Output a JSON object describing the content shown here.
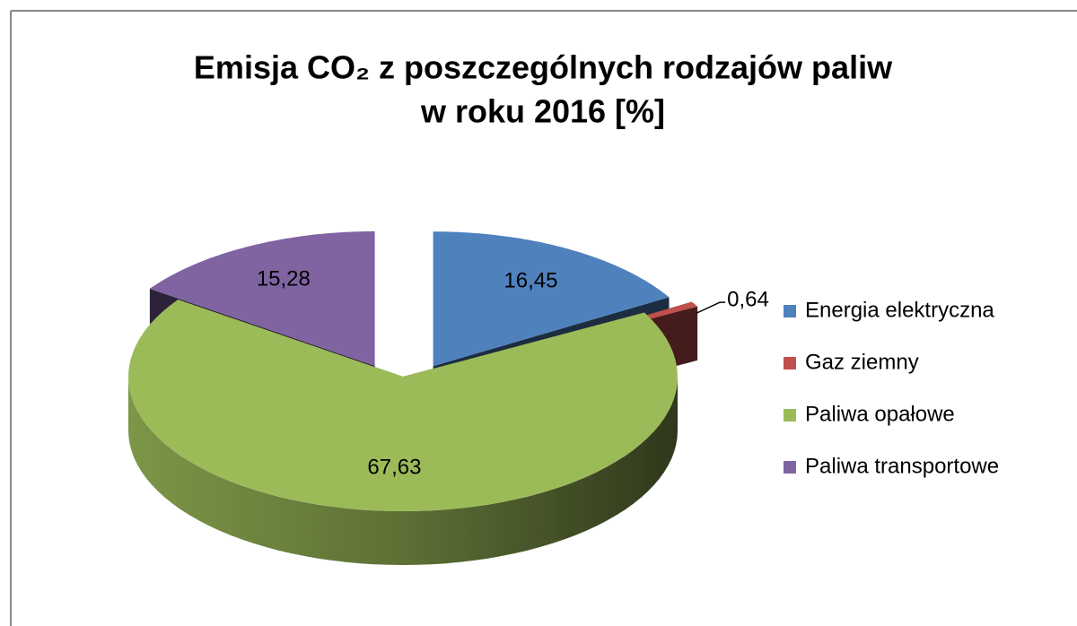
{
  "chart_data": {
    "type": "pie3d",
    "title": [
      "Emisja CO₂ z poszczególnych rodzajów paliw",
      "w roku 2016 [%]"
    ],
    "categories": [
      "Energia elektryczna",
      "Gaz ziemny",
      "Paliwa opałowe",
      "Paliwa transportowe"
    ],
    "values": [
      16.45,
      0.64,
      67.63,
      15.28
    ],
    "value_labels": [
      "16,45",
      "0,64",
      "67,63",
      "15,28"
    ],
    "colors": [
      "#4f81bd",
      "#c0504d",
      "#9bbb59",
      "#8064a2"
    ],
    "legend": "right"
  }
}
